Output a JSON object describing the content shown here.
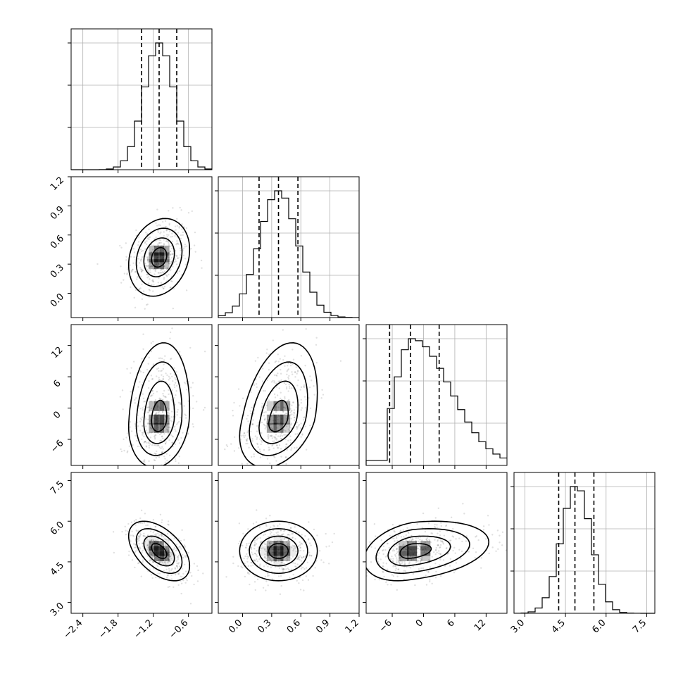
{
  "chart_data": {
    "type": "corner",
    "parameters": [
      {
        "id": "p0",
        "range": [
          -2.6,
          -0.2
        ],
        "ticks": [
          -2.4,
          -1.8,
          -1.2,
          -0.6
        ],
        "tick_labels": [
          "−2.4",
          "−1.8",
          "−1.2",
          "−0.6"
        ],
        "mean": -1.1,
        "sd": 0.26,
        "skew": 0,
        "quantiles": [
          -1.4,
          -1.1,
          -0.8
        ],
        "grid_hist": [
          -2.4,
          -1.8,
          -1.2,
          -0.6
        ]
      },
      {
        "id": "p1",
        "range": [
          -0.25,
          1.2
        ],
        "ticks": [
          0.0,
          0.3,
          0.6,
          0.9,
          1.2
        ],
        "tick_labels": [
          "0.0",
          "0.3",
          "0.6",
          "0.9",
          "1.2"
        ],
        "mean": 0.37,
        "sd": 0.2,
        "skew": 0,
        "quantiles": [
          0.17,
          0.37,
          0.57
        ],
        "grid_hist": [
          0.0,
          0.3,
          0.6,
          0.9,
          1.2
        ]
      },
      {
        "id": "p2",
        "range": [
          -11,
          16
        ],
        "ticks": [
          -6,
          0,
          6,
          12
        ],
        "tick_labels": [
          "−6",
          "0",
          "6",
          "12"
        ],
        "mean": -2.2,
        "sd": 4.6,
        "skew": 1.6,
        "quantiles": [
          -6.5,
          -2.5,
          3
        ],
        "grid_hist": [
          -6,
          0,
          6,
          12
        ]
      },
      {
        "id": "p3",
        "range": [
          2.6,
          7.8
        ],
        "ticks": [
          3.0,
          4.5,
          6.0,
          7.5
        ],
        "tick_labels": [
          "3.0",
          "4.5",
          "6.0",
          "7.5"
        ],
        "mean": 4.9,
        "sd": 0.55,
        "skew": 0,
        "quantiles": [
          4.25,
          4.85,
          5.55
        ],
        "grid_hist": [
          3.0,
          4.5,
          6.0,
          7.5
        ]
      }
    ],
    "correlations": [
      {
        "i": 1,
        "j": 0,
        "rho": 0.2
      },
      {
        "i": 2,
        "j": 0,
        "rho": 0.15
      },
      {
        "i": 2,
        "j": 1,
        "rho": 0.35
      },
      {
        "i": 3,
        "j": 0,
        "rho": -0.5
      },
      {
        "i": 3,
        "j": 1,
        "rho": 0.0
      },
      {
        "i": 3,
        "j": 2,
        "rho": 0.3
      }
    ],
    "contour_levels": [
      0.5,
      1.0,
      1.5,
      2.0
    ],
    "grid": true,
    "scatter_color": "#000000",
    "line_color": "#000000"
  }
}
